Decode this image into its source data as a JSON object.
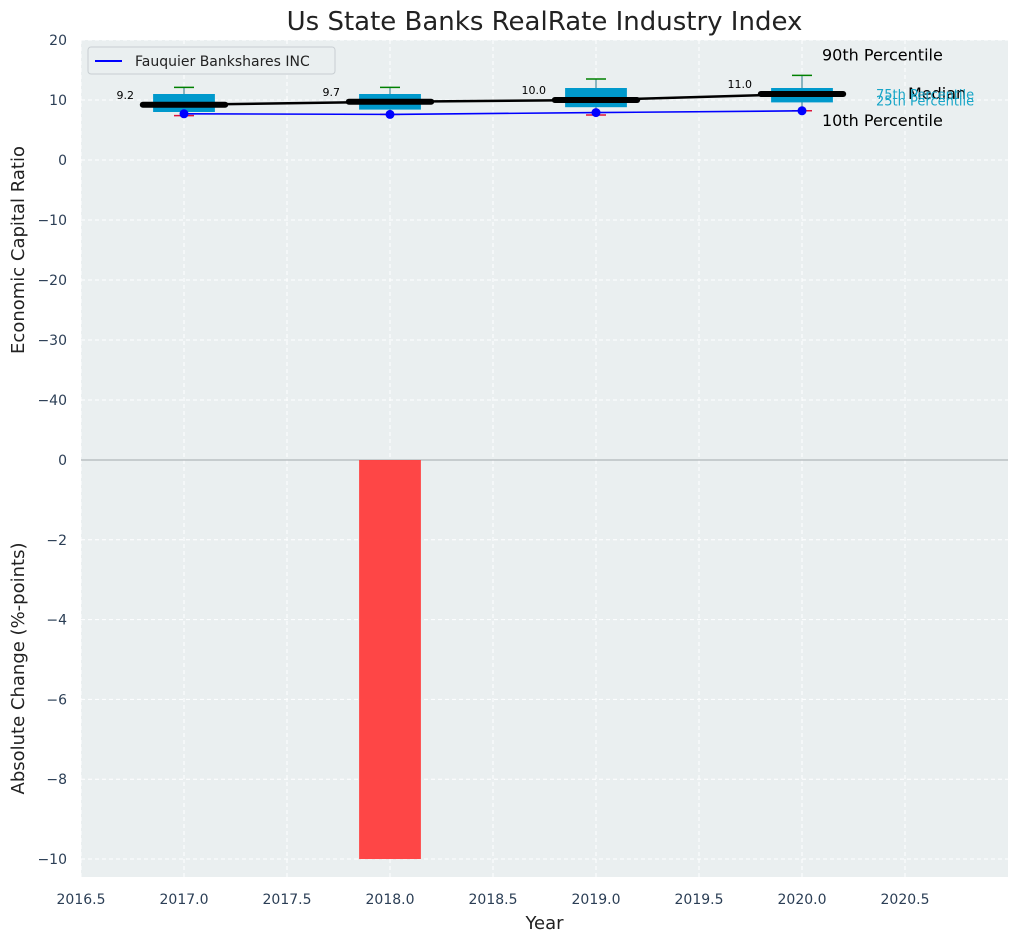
{
  "chart_data": {
    "title": "Us State Banks RealRate Industry Index",
    "xlabel": "Year",
    "x_ticks": [
      "2016.5",
      "2017.0",
      "2017.5",
      "2018.0",
      "2018.5",
      "2019.0",
      "2019.5",
      "2020.0",
      "2020.5"
    ],
    "xlim": [
      2016.5,
      2021.0
    ],
    "grid": true,
    "legend": {
      "position": "top-left",
      "entries": [
        "Fauquier Bankshares INC"
      ]
    },
    "top_panel": {
      "type": "box",
      "ylabel": "Economic Capital Ratio",
      "ylim": [
        -50,
        20
      ],
      "y_ticks": [
        "20",
        "10",
        "0",
        "−10",
        "−20",
        "−30",
        "−40"
      ],
      "boxes": [
        {
          "x": 2017.0,
          "p10": 7.4,
          "p25": 8.0,
          "median": 9.2,
          "p75": 11.0,
          "p90": 12.1
        },
        {
          "x": 2018.0,
          "p10": 7.6,
          "p25": 8.4,
          "median": 9.7,
          "p75": 11.0,
          "p90": 12.1
        },
        {
          "x": 2019.0,
          "p10": 7.5,
          "p25": 8.8,
          "median": 10.0,
          "p75": 12.0,
          "p90": 13.5
        },
        {
          "x": 2020.0,
          "p10": 8.2,
          "p25": 9.6,
          "median": 11.0,
          "p75": 12.0,
          "p90": 14.1
        }
      ],
      "median_labels": [
        "9.2",
        "9.7",
        "10.0",
        "11.0"
      ],
      "company_series": {
        "name": "Fauquier Bankshares INC",
        "x": [
          2017.0,
          2018.0,
          2019.0,
          2020.0
        ],
        "values": [
          7.7,
          7.6,
          7.9,
          8.2
        ]
      },
      "percentile_labels": {
        "p90": "90th Percentile",
        "median": "Median",
        "p10": "10th Percentile",
        "p75": "75th Percentile",
        "p25": "25th Percentile"
      }
    },
    "bottom_panel": {
      "type": "bar",
      "ylabel": "Absolute Change (%-points)",
      "ylim": [
        -10.45,
        0
      ],
      "y_ticks": [
        "0",
        "−2",
        "−4",
        "−6",
        "−8",
        "−10"
      ],
      "x": [
        2018.0
      ],
      "values": [
        -10.0
      ]
    },
    "colors": {
      "box": "#0099cc",
      "median_line": "#000000",
      "company_line": "#0000ff",
      "p90_cap": "#008000",
      "p10_cap": "#dc143c",
      "bar_negative": "#ff3c3c",
      "background": "#eaeff0",
      "grid": "#ffffff"
    }
  }
}
